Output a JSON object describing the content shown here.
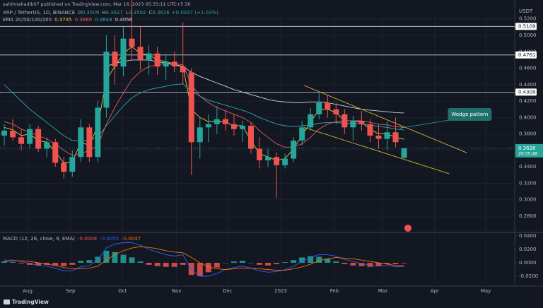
{
  "header": {
    "published": "sahilmahadik07 published on TradingView.com, Mar 16, 2023 05:33:11 UTC+5:30",
    "brand": "TradingView"
  },
  "chart_data": [
    {
      "type": "candlestick",
      "title": "XRP / TetherUS, 1D, BINANCE",
      "ohlc_labels": [
        "O",
        "H",
        "L",
        "C"
      ],
      "change": "+0.0037 (+1.03%)",
      "axis_unit": "USDT",
      "indicator": "EMA 20/50/100/200",
      "last_price_timer": "20:35:48",
      "annotation": "Wedge pattern",
      "up_color": "#26a69a",
      "down_color": "#ef5350",
      "open": [
        0.378,
        0.384,
        0.376,
        0.368,
        0.386,
        0.362,
        0.37,
        0.345,
        0.334,
        0.352,
        0.388,
        0.352,
        0.412,
        0.48,
        0.462,
        0.496,
        0.486,
        0.47,
        0.478,
        0.462,
        0.468,
        0.462,
        0.455,
        0.37,
        0.388,
        0.392,
        0.398,
        0.392,
        0.386,
        0.39,
        0.362,
        0.348,
        0.352,
        0.342,
        0.35,
        0.372,
        0.388,
        0.404,
        0.418,
        0.41,
        0.404,
        0.388,
        0.396,
        0.392,
        0.378,
        0.374,
        0.382,
        0.3509
      ],
      "high": [
        0.392,
        0.398,
        0.386,
        0.392,
        0.39,
        0.376,
        0.374,
        0.352,
        0.36,
        0.398,
        0.392,
        0.42,
        0.5,
        0.5,
        0.51,
        0.546,
        0.51,
        0.488,
        0.486,
        0.476,
        0.48,
        0.516,
        0.46,
        0.4,
        0.404,
        0.414,
        0.41,
        0.404,
        0.396,
        0.394,
        0.376,
        0.362,
        0.358,
        0.356,
        0.376,
        0.396,
        0.412,
        0.432,
        0.428,
        0.418,
        0.41,
        0.402,
        0.408,
        0.398,
        0.392,
        0.396,
        0.4,
        0.3627
      ],
      "low": [
        0.366,
        0.372,
        0.36,
        0.362,
        0.358,
        0.352,
        0.34,
        0.326,
        0.328,
        0.346,
        0.346,
        0.346,
        0.4,
        0.44,
        0.45,
        0.47,
        0.458,
        0.452,
        0.452,
        0.446,
        0.455,
        0.44,
        0.33,
        0.35,
        0.37,
        0.38,
        0.384,
        0.378,
        0.37,
        0.356,
        0.338,
        0.34,
        0.302,
        0.338,
        0.346,
        0.366,
        0.384,
        0.398,
        0.4,
        0.392,
        0.38,
        0.372,
        0.384,
        0.37,
        0.362,
        0.36,
        0.364,
        0.3502
      ],
      "close": [
        0.384,
        0.376,
        0.368,
        0.386,
        0.362,
        0.37,
        0.345,
        0.334,
        0.352,
        0.388,
        0.352,
        0.412,
        0.48,
        0.462,
        0.496,
        0.486,
        0.47,
        0.478,
        0.462,
        0.468,
        0.462,
        0.455,
        0.37,
        0.388,
        0.392,
        0.398,
        0.392,
        0.386,
        0.39,
        0.362,
        0.348,
        0.352,
        0.342,
        0.35,
        0.372,
        0.388,
        0.404,
        0.418,
        0.41,
        0.404,
        0.388,
        0.396,
        0.392,
        0.378,
        0.374,
        0.382,
        0.37,
        0.3626
      ],
      "series": [
        {
          "color": "#e8c547",
          "legend_value": "0.3735",
          "values": [
            0.388,
            0.385,
            0.378,
            0.38,
            0.372,
            0.37,
            0.358,
            0.345,
            0.346,
            0.37,
            0.366,
            0.39,
            0.446,
            0.462,
            0.478,
            0.486,
            0.478,
            0.476,
            0.47,
            0.468,
            0.465,
            0.462,
            0.41,
            0.4,
            0.395,
            0.396,
            0.394,
            0.39,
            0.39,
            0.372,
            0.356,
            0.352,
            0.348,
            0.35,
            0.362,
            0.378,
            0.394,
            0.41,
            0.41,
            0.406,
            0.396,
            0.396,
            0.394,
            0.386,
            0.38,
            0.38,
            0.376,
            0.3735
          ]
        },
        {
          "color": "#e05d5d",
          "legend_value": "0.3880",
          "values": [
            0.395,
            0.392,
            0.386,
            0.382,
            0.378,
            0.374,
            0.368,
            0.36,
            0.354,
            0.356,
            0.36,
            0.366,
            0.392,
            0.412,
            0.43,
            0.446,
            0.456,
            0.462,
            0.464,
            0.466,
            0.466,
            0.464,
            0.44,
            0.426,
            0.418,
            0.412,
            0.408,
            0.404,
            0.4,
            0.394,
            0.384,
            0.376,
            0.368,
            0.364,
            0.364,
            0.368,
            0.376,
            0.386,
            0.392,
            0.395,
            0.396,
            0.396,
            0.396,
            0.394,
            0.392,
            0.391,
            0.389,
            0.388
          ]
        },
        {
          "color": "#2ea8a8",
          "legend_value": "0.3848",
          "values": [
            0.44,
            0.43,
            0.42,
            0.41,
            0.402,
            0.394,
            0.386,
            0.378,
            0.372,
            0.372,
            0.372,
            0.376,
            0.39,
            0.402,
            0.414,
            0.424,
            0.43,
            0.434,
            0.436,
            0.438,
            0.44,
            0.441,
            0.432,
            0.426,
            0.421,
            0.418,
            0.415,
            0.412,
            0.409,
            0.405,
            0.4,
            0.396,
            0.392,
            0.39,
            0.389,
            0.39,
            0.391,
            0.393,
            0.394,
            0.394,
            0.393,
            0.393,
            0.392,
            0.391,
            0.389,
            0.388,
            0.386,
            0.3848
          ]
        },
        {
          "color": "#d1d4dc",
          "legend_value": "0.4056",
          "values": [
            null,
            null,
            null,
            null,
            null,
            null,
            null,
            null,
            null,
            null,
            null,
            null,
            0.462,
            0.466,
            0.468,
            0.47,
            0.47,
            0.47,
            0.468,
            0.466,
            0.464,
            0.462,
            0.455,
            0.45,
            0.446,
            0.442,
            0.438,
            0.434,
            0.431,
            0.428,
            0.425,
            0.422,
            0.42,
            0.419,
            0.418,
            0.418,
            0.419,
            0.419,
            0.418,
            0.416,
            0.414,
            0.412,
            0.41,
            0.409,
            0.408,
            0.407,
            0.406,
            0.4056
          ]
        }
      ],
      "levels": [
        {
          "value": 0.5109,
          "label": "0.5109"
        },
        {
          "value": 0.4761,
          "label": "0.4761"
        },
        {
          "value": 0.4309,
          "label": "0.4309"
        }
      ],
      "trendlines": [
        {
          "color": "#c9b32f",
          "points": [
            [
              35.25,
              0.439
            ],
            [
              54.4,
              0.357
            ]
          ]
        },
        {
          "color": "#c9b32f",
          "points": [
            [
              35.25,
              0.388
            ],
            [
              52.3,
              0.3316
            ]
          ]
        }
      ],
      "xlim": [
        -0.5,
        60
      ],
      "xticks": [
        {
          "value": 2.75,
          "label": "Aug"
        },
        {
          "value": 7.8,
          "label": "Sep"
        },
        {
          "value": 13.9,
          "label": "Oct"
        },
        {
          "value": 20.25,
          "label": "Nov"
        },
        {
          "value": 26.25,
          "label": "Dec"
        },
        {
          "value": 32.5,
          "label": "2023"
        },
        {
          "value": 38.8,
          "label": "Feb"
        },
        {
          "value": 44.5,
          "label": "Mar"
        },
        {
          "value": 50.6,
          "label": "Apr"
        },
        {
          "value": 56.6,
          "label": "May"
        }
      ],
      "ylim": [
        0.2611,
        0.5275
      ],
      "yticks": [
        {
          "value": 0.28,
          "label": "0.2800"
        },
        {
          "value": 0.3,
          "label": "0.3000"
        },
        {
          "value": 0.32,
          "label": "0.3200"
        },
        {
          "value": 0.34,
          "label": "0.3400"
        },
        {
          "value": 0.36,
          "label": "0.3600"
        },
        {
          "value": 0.38,
          "label": "0.3800"
        },
        {
          "value": 0.4,
          "label": "0.4000"
        },
        {
          "value": 0.42,
          "label": "0.4200"
        },
        {
          "value": 0.44,
          "label": "0.4400"
        },
        {
          "value": 0.46,
          "label": "0.4600"
        },
        {
          "value": 0.48,
          "label": "0.4800"
        },
        {
          "value": 0.5,
          "label": "0.5000"
        },
        {
          "value": 0.52,
          "label": "0.5200"
        }
      ]
    },
    {
      "type": "macd",
      "title": "MACD (12, 26, close, 9, EMA)",
      "histogram": {
        "up_color": "#26a69a",
        "down_color": "#ef5350",
        "legend_value": "-0.0008",
        "values": [
          0.002,
          0.001,
          -0.001,
          -0.003,
          -0.004,
          -0.003,
          -0.004,
          -0.005,
          -0.003,
          0.003,
          0.004,
          0.009,
          0.018,
          0.016,
          0.012,
          0.008,
          0.002,
          -0.003,
          -0.005,
          -0.006,
          -0.006,
          -0.003,
          -0.018,
          -0.02,
          -0.014,
          -0.007,
          0.0,
          0.002,
          0.003,
          0.0,
          -0.003,
          -0.004,
          -0.002,
          0.001,
          0.004,
          0.008,
          0.01,
          0.009,
          0.006,
          0.002,
          -0.002,
          -0.004,
          -0.005,
          -0.006,
          -0.005,
          -0.002,
          -0.002,
          -0.0008
        ]
      },
      "series": [
        {
          "color": "#2962ff",
          "legend_value": "-0.0055",
          "values": [
            0.004,
            0.004,
            0.002,
            -0.001,
            -0.004,
            -0.005,
            -0.008,
            -0.012,
            -0.012,
            -0.006,
            -0.004,
            0.004,
            0.022,
            0.028,
            0.03,
            0.03,
            0.026,
            0.02,
            0.016,
            0.012,
            0.01,
            0.012,
            -0.01,
            -0.02,
            -0.02,
            -0.016,
            -0.01,
            -0.007,
            -0.005,
            -0.008,
            -0.012,
            -0.014,
            -0.013,
            -0.01,
            -0.005,
            0.002,
            0.008,
            0.012,
            0.012,
            0.01,
            0.005,
            0.002,
            -0.001,
            -0.004,
            -0.005,
            -0.004,
            -0.006,
            -0.0055
          ]
        },
        {
          "color": "#ff6d00",
          "legend_value": "-0.0047",
          "values": [
            0.002,
            0.003,
            0.003,
            0.002,
            0.0,
            -0.002,
            -0.004,
            -0.007,
            -0.009,
            -0.009,
            -0.008,
            -0.005,
            0.004,
            0.012,
            0.018,
            0.022,
            0.024,
            0.023,
            0.021,
            0.018,
            0.016,
            0.015,
            0.008,
            0.0,
            -0.006,
            -0.009,
            -0.01,
            -0.009,
            -0.008,
            -0.008,
            -0.009,
            -0.01,
            -0.011,
            -0.011,
            -0.009,
            -0.006,
            -0.002,
            0.003,
            0.006,
            0.008,
            0.007,
            0.006,
            0.004,
            0.002,
            0.0,
            -0.002,
            -0.004,
            -0.0047
          ]
        }
      ],
      "ylim": [
        -0.0347,
        0.0442
      ],
      "yticks": [
        {
          "value": 0.04,
          "label": "0.0400"
        },
        {
          "value": 0.02,
          "label": "0.0200"
        },
        {
          "value": 0,
          "label": "0.0000"
        },
        {
          "value": -0.02,
          "label": "-0.0200"
        }
      ]
    }
  ]
}
